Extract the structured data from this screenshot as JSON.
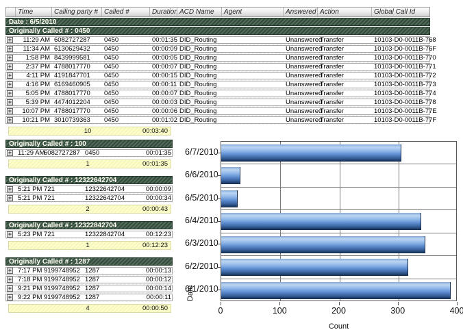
{
  "table": {
    "expand_icon": "+",
    "columns": [
      "",
      "Time",
      "Calling party #",
      "Called #",
      "Duration",
      "ACD Name",
      "Agent",
      "Answered",
      "Action",
      "Global Call Id"
    ],
    "date_header": "Date : 6/5/2010",
    "groups": [
      {
        "title": "Originally Called # : 0450",
        "rows": [
          {
            "time": "11:29 AM",
            "calling": "6082727287",
            "called": "0450",
            "duration": "00:01:35",
            "acd": "DID_Routing",
            "agent": "",
            "answered": "Unanswered",
            "action": "Transfer",
            "global_id": "10103-D0-0011B-768"
          },
          {
            "time": "11:34 AM",
            "calling": "6130629432",
            "called": "0450",
            "duration": "00:00:09",
            "acd": "DID_Routing",
            "agent": "",
            "answered": "Unanswered",
            "action": "Transfer",
            "global_id": "10103-D0-0011B-76F"
          },
          {
            "time": "1:58 PM",
            "calling": "8439999581",
            "called": "0450",
            "duration": "00:00:05",
            "acd": "DID_Routing",
            "agent": "",
            "answered": "Unanswered",
            "action": "Transfer",
            "global_id": "10103-D0-0011B-770"
          },
          {
            "time": "2:37 PM",
            "calling": "4788017770",
            "called": "0450",
            "duration": "00:00:07",
            "acd": "DID_Routing",
            "agent": "",
            "answered": "Unanswered",
            "action": "Transfer",
            "global_id": "10103-D0-0011B-771"
          },
          {
            "time": "4:11 PM",
            "calling": "4191847701",
            "called": "0450",
            "duration": "00:00:15",
            "acd": "DID_Routing",
            "agent": "",
            "answered": "Unanswered",
            "action": "Transfer",
            "global_id": "10103-D0-0011B-772"
          },
          {
            "time": "4:16 PM",
            "calling": "6169460905",
            "called": "0450",
            "duration": "00:00:11",
            "acd": "DID_Routing",
            "agent": "",
            "answered": "Unanswered",
            "action": "Transfer",
            "global_id": "10103-D0-0011B-773"
          },
          {
            "time": "5:05 PM",
            "calling": "4788017770",
            "called": "0450",
            "duration": "00:00:07",
            "acd": "DID_Routing",
            "agent": "",
            "answered": "Unanswered",
            "action": "Transfer",
            "global_id": "10103-D0-0011B-774"
          },
          {
            "time": "5:39 PM",
            "calling": "4474012204",
            "called": "0450",
            "duration": "00:00:03",
            "acd": "DID_Routing",
            "agent": "",
            "answered": "Unanswered",
            "action": "Transfer",
            "global_id": "10103-D0-0011B-778"
          },
          {
            "time": "10:07 PM",
            "calling": "4788017770",
            "called": "0450",
            "duration": "00:00:06",
            "acd": "DID_Routing",
            "agent": "",
            "answered": "Unanswered",
            "action": "Transfer",
            "global_id": "10103-D0-0011B-77E"
          },
          {
            "time": "10:21 PM",
            "calling": "3010739363",
            "called": "0450",
            "duration": "00:01:02",
            "acd": "DID_Routing",
            "agent": "",
            "answered": "Unanswered",
            "action": "Transfer",
            "global_id": "10103-D0-0011B-77F"
          }
        ],
        "summary": {
          "count": "10",
          "total_duration": "00:03:40"
        }
      },
      {
        "title": "Originally Called # : 100",
        "rows": [
          {
            "time": "11:29 AM",
            "calling": "6082727287",
            "called": "0450",
            "duration": "00:01:35"
          }
        ],
        "summary": {
          "count": "1",
          "total_duration": "00:01:35"
        }
      },
      {
        "title": "Originally Called # : 12322642704",
        "rows": [
          {
            "time": "5:21 PM",
            "calling": "721",
            "called": "12322642704",
            "duration": "00:00:09"
          },
          {
            "time": "5:21 PM",
            "calling": "721",
            "called": "12322642704",
            "duration": "00:00:34"
          }
        ],
        "summary": {
          "count": "2",
          "total_duration": "00:00:43"
        }
      },
      {
        "title": "Originally Called # : 12322842704",
        "rows": [
          {
            "time": "5:23 PM",
            "calling": "721",
            "called": "12322842704",
            "duration": "00:12:23"
          }
        ],
        "summary": {
          "count": "1",
          "total_duration": "00:12:23"
        }
      },
      {
        "title": "Originally Called # : 1287",
        "rows": [
          {
            "time": "7:17 PM",
            "calling": "9199748952",
            "called": "1287",
            "duration": "00:00:13"
          },
          {
            "time": "7:18 PM",
            "calling": "9199748952",
            "called": "1287",
            "duration": "00:00:12"
          },
          {
            "time": "9:21 PM",
            "calling": "9199748952",
            "called": "1287",
            "duration": "00:00:14"
          },
          {
            "time": "9:22 PM",
            "calling": "9199748952",
            "called": "1287",
            "duration": "00:00:11"
          }
        ],
        "summary": {
          "count": "4",
          "total_duration": "00:00:50"
        }
      }
    ]
  },
  "chart_data": {
    "type": "bar",
    "orientation": "horizontal",
    "categories": [
      "6/7/2010",
      "6/6/2010",
      "6/5/2010",
      "6/4/2010",
      "6/3/2010",
      "6/2/2010",
      "6/1/2010"
    ],
    "values": [
      307,
      33,
      28,
      340,
      348,
      318,
      391
    ],
    "title": "",
    "xlabel": "Count",
    "ylabel": "Date",
    "xlim": [
      0,
      400
    ],
    "xticks": [
      0,
      100,
      200,
      300,
      400
    ],
    "grid": true,
    "legend": "none",
    "bar_color": "#5f8ed1"
  },
  "colors": {
    "group_band": "#3b5743",
    "summary_bg": "#ffffc9",
    "bar_dark": "#16294a",
    "grid_line": "#777777"
  }
}
